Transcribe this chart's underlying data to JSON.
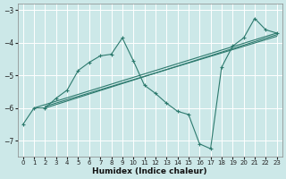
{
  "xlabel": "Humidex (Indice chaleur)",
  "background_color": "#cce8e8",
  "grid_color": "#ffffff",
  "line_color": "#2d7a6e",
  "xlim": [
    -0.5,
    23.5
  ],
  "ylim": [
    -7.5,
    -2.8
  ],
  "yticks": [
    -7,
    -6,
    -5,
    -4,
    -3
  ],
  "xticks": [
    0,
    1,
    2,
    3,
    4,
    5,
    6,
    7,
    8,
    9,
    10,
    11,
    12,
    13,
    14,
    15,
    16,
    17,
    18,
    19,
    20,
    21,
    22,
    23
  ],
  "line1_x": [
    0,
    1,
    2,
    3,
    4,
    5,
    6,
    7,
    8,
    9,
    10,
    11,
    12,
    13,
    14,
    15,
    16,
    17,
    18,
    19,
    20,
    21,
    22,
    23
  ],
  "line1_y": [
    -6.5,
    -6.0,
    -6.0,
    -5.7,
    -5.45,
    -4.85,
    -4.6,
    -4.4,
    -4.35,
    -3.85,
    -4.55,
    -5.3,
    -5.55,
    -5.85,
    -6.1,
    -6.2,
    -7.1,
    -7.25,
    -4.75,
    -4.1,
    -3.85,
    -3.25,
    -3.6,
    -3.7
  ],
  "line2_x": [
    1,
    23
  ],
  "line2_y": [
    -6.0,
    -3.7
  ],
  "line3_x": [
    2,
    23
  ],
  "line3_y": [
    -6.0,
    -3.75
  ],
  "line4_x": [
    2,
    23
  ],
  "line4_y": [
    -5.95,
    -3.8
  ]
}
